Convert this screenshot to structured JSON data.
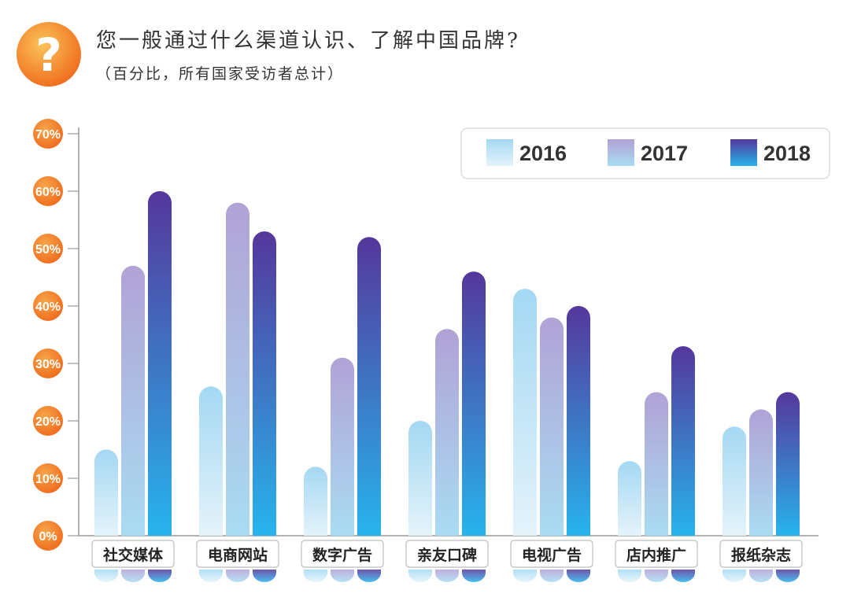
{
  "header": {
    "icon_symbol": "?",
    "title": "您一般通过什么渠道认识、了解中国品牌?",
    "subtitle": "（百分比，所有国家受访者总计）"
  },
  "colors": {
    "badge_light": "#fbc35a",
    "badge_dark": "#ef6a1c",
    "s2016_top": "#a4d8f3",
    "s2016_bottom": "#e4f3fa",
    "s2017_top": "#b1a2d6",
    "s2017_bottom": "#a9dcf2",
    "s2018_top": "#55379b",
    "s2018_bottom": "#27b4ec",
    "axis": "#9a9a9a",
    "text": "#333333"
  },
  "chart_data": {
    "type": "bar",
    "title": "您一般通过什么渠道认识、了解中国品牌?",
    "subtitle": "（百分比，所有国家受访者总计）",
    "xlabel": "",
    "ylabel": "",
    "ylim": [
      0,
      70
    ],
    "yticks": [
      0,
      10,
      20,
      30,
      40,
      50,
      60,
      70
    ],
    "ytick_labels": [
      "0%",
      "10%",
      "20%",
      "30%",
      "40%",
      "50%",
      "60%",
      "70%"
    ],
    "categories": [
      "社交媒体",
      "电商网站",
      "数字广告",
      "亲友口碑",
      "电视广告",
      "店内推广",
      "报纸杂志"
    ],
    "series": [
      {
        "name": "2016",
        "values": [
          15,
          26,
          12,
          20,
          43,
          13,
          19
        ]
      },
      {
        "name": "2017",
        "values": [
          47,
          58,
          31,
          36,
          38,
          25,
          22
        ]
      },
      {
        "name": "2018",
        "values": [
          60,
          53,
          52,
          46,
          40,
          33,
          25
        ]
      }
    ],
    "legend_position": "top-right",
    "grid": false
  }
}
